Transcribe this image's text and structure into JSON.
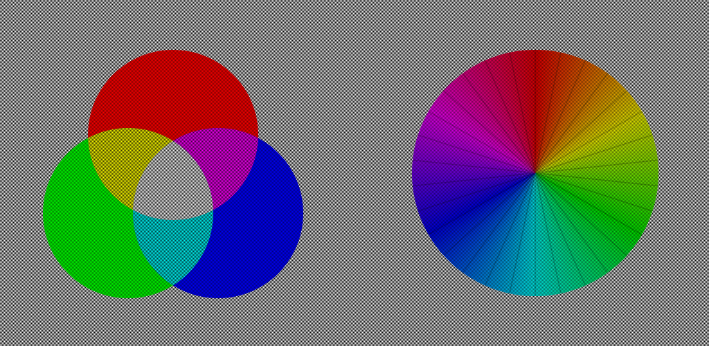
{
  "background": {
    "pattern": "checkerboard-dither",
    "colors": [
      "#000000",
      "#ffffff"
    ]
  },
  "venn_diagram": {
    "circles": [
      {
        "name": "red",
        "color": "#ff0000"
      },
      {
        "name": "green",
        "color": "#00ff00"
      },
      {
        "name": "blue",
        "color": "#0000ff"
      }
    ],
    "overlaps": [
      {
        "name": "red-green",
        "color": "#ffff00"
      },
      {
        "name": "red-blue",
        "color": "#ff00ff"
      },
      {
        "name": "green-blue",
        "color": "#00ffff"
      },
      {
        "name": "red-green-blue",
        "color": "#ffffff"
      }
    ],
    "dither_contrast": 0.55
  },
  "color_wheel": {
    "hue_start_deg": 0,
    "hue_end_deg": 360,
    "segments": 30,
    "dither_contrast": 0.55
  }
}
